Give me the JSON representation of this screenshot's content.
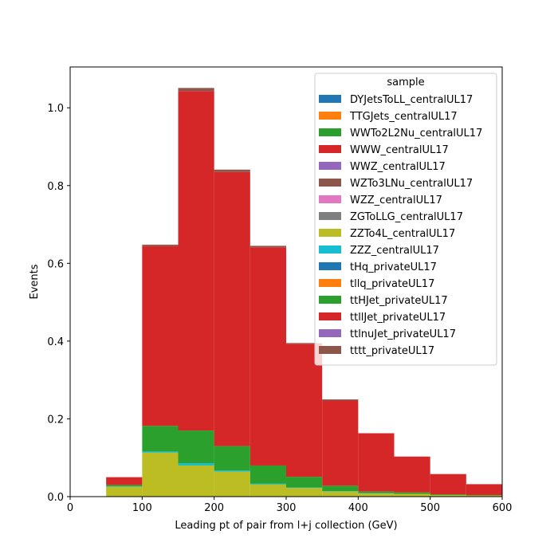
{
  "chart_data": {
    "type": "bar",
    "stacked": true,
    "histogram": true,
    "xlabel": "Leading pt of pair from l+j collection (GeV)",
    "ylabel": "Events",
    "xlim": [
      0,
      600
    ],
    "ylim": [
      0,
      1.105
    ],
    "xticks": [
      0,
      100,
      200,
      300,
      400,
      500,
      600
    ],
    "yticks": [
      0.0,
      0.2,
      0.4,
      0.6,
      0.8,
      1.0
    ],
    "grid": false,
    "legend": {
      "title": "sample",
      "placement": "top-right"
    },
    "bin_edges": [
      50,
      100,
      150,
      200,
      250,
      300,
      350,
      400,
      450,
      500,
      550,
      600
    ],
    "series": [
      {
        "name": "DYJetsToLL_centralUL17",
        "color": "#1f77b4",
        "values": [
          0,
          0,
          0,
          0,
          0,
          0,
          0,
          0,
          0,
          0,
          0
        ]
      },
      {
        "name": "TTGJets_centralUL17",
        "color": "#ff7f0e",
        "values": [
          0,
          0,
          0,
          0,
          0,
          0,
          0,
          0,
          0,
          0,
          0
        ]
      },
      {
        "name": "WWTo2L2Nu_centralUL17",
        "color": "#2ca02c",
        "values": [
          0,
          0,
          0,
          0,
          0,
          0,
          0,
          0,
          0,
          0,
          0
        ]
      },
      {
        "name": "WWW_centralUL17",
        "color": "#d62728",
        "values": [
          0,
          0,
          0,
          0,
          0,
          0,
          0,
          0,
          0,
          0,
          0
        ]
      },
      {
        "name": "WWZ_centralUL17",
        "color": "#9467bd",
        "values": [
          0,
          0,
          0,
          0,
          0,
          0,
          0,
          0,
          0,
          0,
          0
        ]
      },
      {
        "name": "WZTo3LNu_centralUL17",
        "color": "#8c564b",
        "values": [
          0,
          0,
          0,
          0,
          0,
          0,
          0,
          0,
          0,
          0,
          0
        ]
      },
      {
        "name": "WZZ_centralUL17",
        "color": "#e377c2",
        "values": [
          0,
          0,
          0,
          0,
          0,
          0,
          0,
          0,
          0,
          0,
          0
        ]
      },
      {
        "name": "ZGToLLG_centralUL17",
        "color": "#7f7f7f",
        "values": [
          0,
          0,
          0,
          0,
          0,
          0,
          0,
          0,
          0,
          0,
          0
        ]
      },
      {
        "name": "ZZTo4L_centralUL17",
        "color": "#bcbd22",
        "values": [
          0.025,
          0.113,
          0.08,
          0.064,
          0.031,
          0.022,
          0.013,
          0.008,
          0.007,
          0.004,
          0.003
        ]
      },
      {
        "name": "ZZZ_centralUL17",
        "color": "#17becf",
        "values": [
          0.001,
          0.003,
          0.006,
          0.003,
          0.002,
          0.001,
          0.001,
          0.001,
          0.0,
          0.0,
          0.0
        ]
      },
      {
        "name": "tHq_privateUL17",
        "color": "#1f77b4",
        "values": [
          0,
          0,
          0,
          0,
          0,
          0,
          0,
          0,
          0,
          0,
          0
        ]
      },
      {
        "name": "tllq_privateUL17",
        "color": "#ff7f0e",
        "values": [
          0,
          0,
          0,
          0,
          0,
          0,
          0,
          0,
          0,
          0,
          0
        ]
      },
      {
        "name": "ttHJet_privateUL17",
        "color": "#2ca02c",
        "values": [
          0.004,
          0.066,
          0.084,
          0.063,
          0.047,
          0.028,
          0.014,
          0.004,
          0.004,
          0.002,
          0.001
        ]
      },
      {
        "name": "ttllJet_privateUL17",
        "color": "#d62728",
        "values": [
          0.02,
          0.462,
          0.873,
          0.705,
          0.561,
          0.342,
          0.219,
          0.15,
          0.092,
          0.052,
          0.028
        ]
      },
      {
        "name": "ttlnuJet_privateUL17",
        "color": "#9467bd",
        "values": [
          0,
          0,
          0,
          0,
          0,
          0,
          0,
          0,
          0,
          0,
          0
        ]
      },
      {
        "name": "tttt_privateUL17",
        "color": "#8c564b",
        "values": [
          0,
          0.004,
          0.008,
          0.006,
          0.004,
          0.002,
          0.003,
          0,
          0,
          0,
          0
        ]
      }
    ]
  }
}
